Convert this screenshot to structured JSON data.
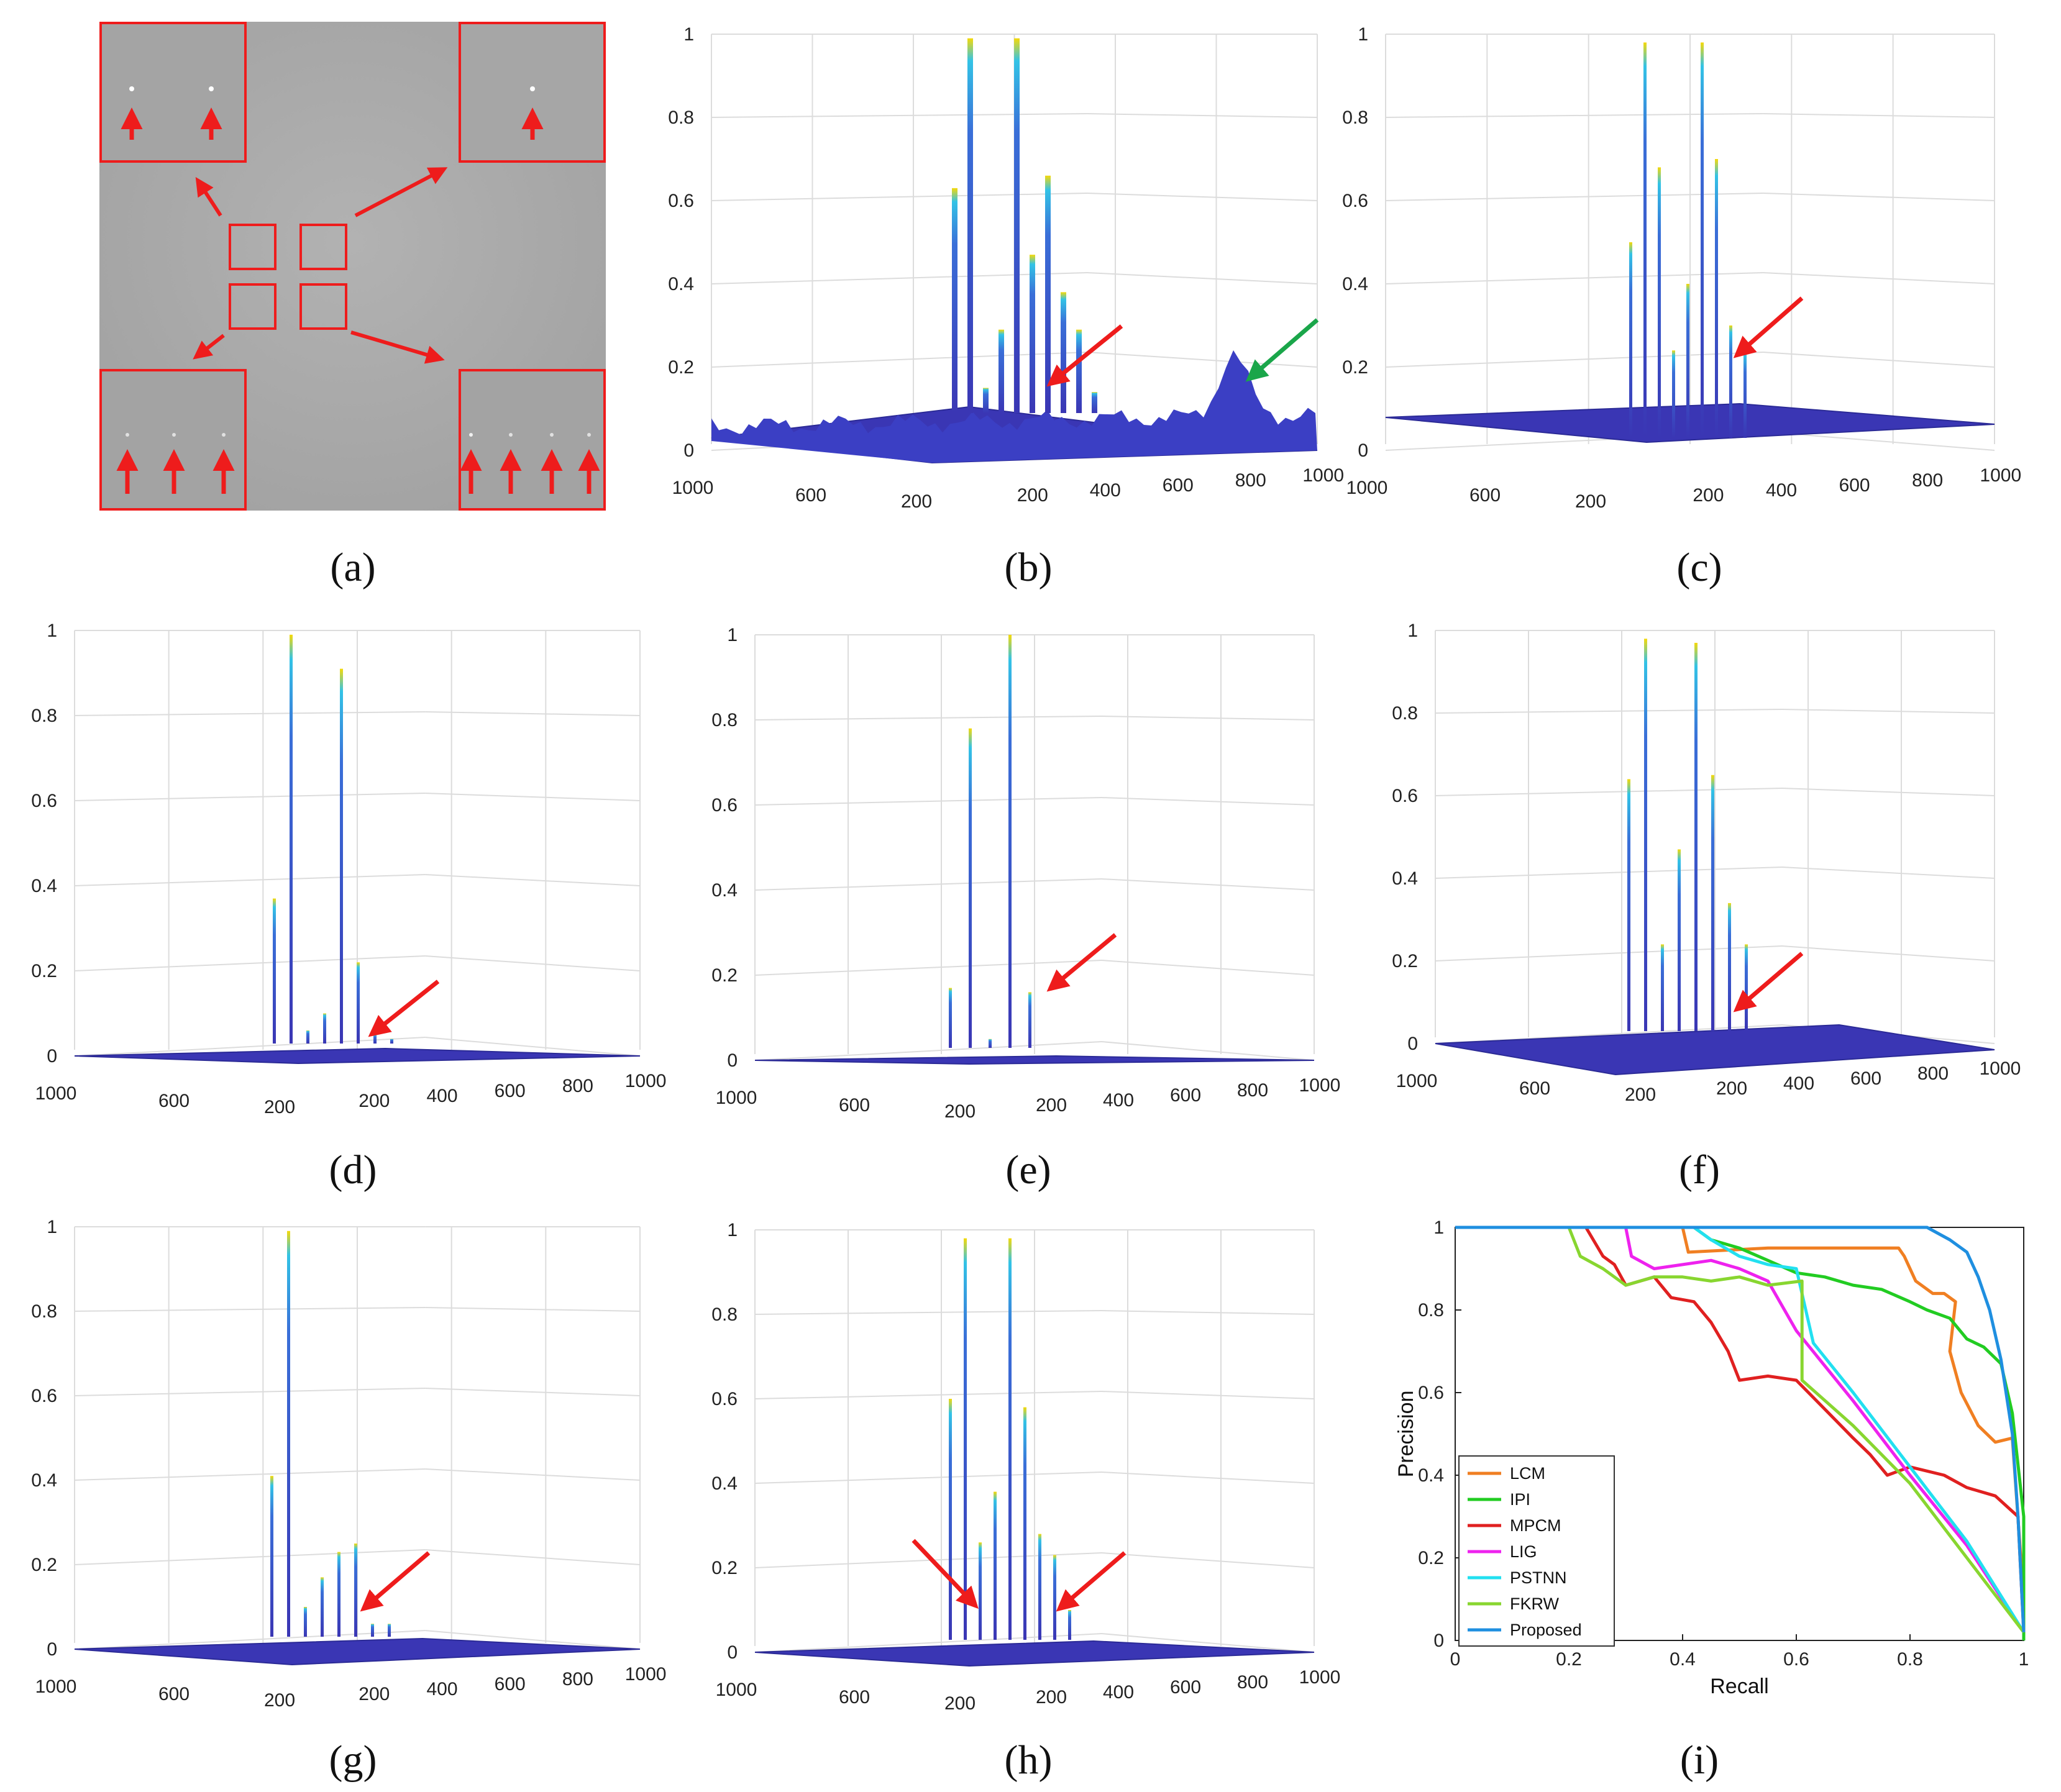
{
  "panel_labels": [
    "(a)",
    "(b)",
    "(c)",
    "(d)",
    "(e)",
    "(f)",
    "(g)",
    "(h)",
    "(i)"
  ],
  "colors": {
    "arrow_red": "#ee1c1c",
    "arrow_green": "#1aa64a",
    "surface": "#3a36b4",
    "surface_dark": "#2b2a96",
    "peak_top": "#f5d90a"
  },
  "chart_data": [
    {
      "type": "image",
      "id": "a",
      "title": "(a)",
      "description_targets": {
        "top_left": 2,
        "top_right": 1,
        "bottom_left": 3,
        "bottom_right": 4
      }
    },
    {
      "type": "surface3d",
      "id": "b",
      "title": "(b)",
      "zlim": [
        0,
        1
      ],
      "z_ticks": [
        "0",
        "0.2",
        "0.4",
        "0.6",
        "0.8",
        "1"
      ],
      "y_ticks": [
        "1000",
        "600",
        "200"
      ],
      "x_ticks": [
        "200",
        "400",
        "600",
        "800",
        "1000"
      ],
      "peaks": [
        0.63,
        0.99,
        0.15,
        0.29,
        0.99,
        0.47,
        0.66,
        0.38,
        0.29,
        0.14
      ],
      "background_level": 0.04,
      "annotations": [
        "red-arrow",
        "green-arrow"
      ]
    },
    {
      "type": "surface3d",
      "id": "c",
      "title": "(c)",
      "zlim": [
        0,
        1
      ],
      "z_ticks": [
        "0",
        "0.2",
        "0.4",
        "0.6",
        "0.8",
        "1"
      ],
      "y_ticks": [
        "1000",
        "600",
        "200"
      ],
      "x_ticks": [
        "200",
        "400",
        "600",
        "800",
        "1000"
      ],
      "peaks": [
        0.5,
        0.98,
        0.68,
        0.24,
        0.4,
        0.98,
        0.7,
        0.3,
        0.24
      ],
      "annotations": [
        "red-arrow"
      ]
    },
    {
      "type": "surface3d",
      "id": "d",
      "title": "(d)",
      "zlim": [
        0,
        1
      ],
      "z_ticks": [
        "0",
        "0.2",
        "0.4",
        "0.6",
        "0.8",
        "1"
      ],
      "y_ticks": [
        "1000",
        "600",
        "200"
      ],
      "x_ticks": [
        "200",
        "400",
        "600",
        "800",
        "1000"
      ],
      "peaks": [
        0.37,
        0.99,
        0.06,
        0.1,
        0.91,
        0.22,
        0.05,
        0.04
      ],
      "annotations": [
        "red-arrow"
      ]
    },
    {
      "type": "surface3d",
      "id": "e",
      "title": "(e)",
      "zlim": [
        0,
        1
      ],
      "z_ticks": [
        "0",
        "0.2",
        "0.4",
        "0.6",
        "0.8",
        "1"
      ],
      "y_ticks": [
        "1000",
        "600",
        "200"
      ],
      "x_ticks": [
        "200",
        "400",
        "600",
        "800",
        "1000"
      ],
      "peaks": [
        0.17,
        0.78,
        0.05,
        1.0,
        0.16
      ],
      "annotations": [
        "red-arrow"
      ]
    },
    {
      "type": "surface3d",
      "id": "f",
      "title": "(f)",
      "zlim": [
        0,
        1
      ],
      "z_ticks": [
        "0",
        "0.2",
        "0.4",
        "0.6",
        "0.8",
        "1"
      ],
      "y_ticks": [
        "1000",
        "600",
        "200"
      ],
      "x_ticks": [
        "200",
        "400",
        "600",
        "800",
        "1000"
      ],
      "peaks": [
        0.64,
        0.98,
        0.24,
        0.47,
        0.97,
        0.65,
        0.34,
        0.24
      ],
      "annotations": [
        "red-arrow"
      ]
    },
    {
      "type": "surface3d",
      "id": "g",
      "title": "(g)",
      "zlim": [
        0,
        1
      ],
      "z_ticks": [
        "0",
        "0.2",
        "0.4",
        "0.6",
        "0.8",
        "1"
      ],
      "y_ticks": [
        "1000",
        "600",
        "200"
      ],
      "x_ticks": [
        "200",
        "400",
        "600",
        "800",
        "1000"
      ],
      "peaks": [
        0.41,
        0.99,
        0.1,
        0.17,
        0.23,
        0.25,
        0.06,
        0.06
      ],
      "annotations": [
        "red-arrow"
      ]
    },
    {
      "type": "surface3d",
      "id": "h",
      "title": "(h)",
      "zlim": [
        0,
        1
      ],
      "z_ticks": [
        "0",
        "0.2",
        "0.4",
        "0.6",
        "0.8",
        "1"
      ],
      "y_ticks": [
        "1000",
        "600",
        "200"
      ],
      "x_ticks": [
        "200",
        "400",
        "600",
        "800",
        "1000"
      ],
      "peaks": [
        0.6,
        0.98,
        0.26,
        0.38,
        0.98,
        0.58,
        0.28,
        0.23,
        0.1
      ],
      "annotations": [
        "red-arrow",
        "red-arrow"
      ]
    },
    {
      "type": "line",
      "id": "i",
      "title": "(i)",
      "xlabel": "Recall",
      "ylabel": "Precision",
      "xlim": [
        0,
        1
      ],
      "ylim": [
        0,
        1
      ],
      "x_ticks": [
        "0",
        "0.2",
        "0.4",
        "0.6",
        "0.8",
        "1"
      ],
      "y_ticks": [
        "0",
        "0.2",
        "0.4",
        "0.6",
        "0.8",
        "1"
      ],
      "legend_position": "bottom-left",
      "series": [
        {
          "name": "LCM",
          "color": "#f07f22",
          "points": [
            [
              0,
              1
            ],
            [
              0.4,
              1
            ],
            [
              0.41,
              0.94
            ],
            [
              0.55,
              0.95
            ],
            [
              0.6,
              0.95
            ],
            [
              0.78,
              0.95
            ],
            [
              0.79,
              0.93
            ],
            [
              0.81,
              0.87
            ],
            [
              0.84,
              0.84
            ],
            [
              0.86,
              0.84
            ],
            [
              0.88,
              0.82
            ],
            [
              0.87,
              0.7
            ],
            [
              0.89,
              0.6
            ],
            [
              0.92,
              0.52
            ],
            [
              0.95,
              0.48
            ],
            [
              0.98,
              0.49
            ],
            [
              1,
              0.1
            ],
            [
              1,
              0
            ]
          ]
        },
        {
          "name": "IPI",
          "color": "#22cc22",
          "points": [
            [
              0,
              1
            ],
            [
              0.42,
              1
            ],
            [
              0.45,
              0.97
            ],
            [
              0.5,
              0.95
            ],
            [
              0.55,
              0.92
            ],
            [
              0.6,
              0.89
            ],
            [
              0.65,
              0.88
            ],
            [
              0.7,
              0.86
            ],
            [
              0.75,
              0.85
            ],
            [
              0.8,
              0.82
            ],
            [
              0.83,
              0.8
            ],
            [
              0.87,
              0.78
            ],
            [
              0.9,
              0.73
            ],
            [
              0.93,
              0.71
            ],
            [
              0.96,
              0.67
            ],
            [
              0.98,
              0.55
            ],
            [
              1,
              0.3
            ],
            [
              1,
              0
            ]
          ]
        },
        {
          "name": "MPCM",
          "color": "#e02020",
          "points": [
            [
              0,
              1
            ],
            [
              0.23,
              1
            ],
            [
              0.26,
              0.93
            ],
            [
              0.28,
              0.91
            ],
            [
              0.3,
              0.86
            ],
            [
              0.35,
              0.88
            ],
            [
              0.38,
              0.83
            ],
            [
              0.42,
              0.82
            ],
            [
              0.45,
              0.77
            ],
            [
              0.48,
              0.7
            ],
            [
              0.5,
              0.63
            ],
            [
              0.55,
              0.64
            ],
            [
              0.6,
              0.63
            ],
            [
              0.65,
              0.56
            ],
            [
              0.7,
              0.49
            ],
            [
              0.73,
              0.45
            ],
            [
              0.76,
              0.4
            ],
            [
              0.8,
              0.42
            ],
            [
              0.86,
              0.4
            ],
            [
              0.9,
              0.37
            ],
            [
              0.95,
              0.35
            ],
            [
              0.99,
              0.3
            ],
            [
              1,
              0.02
            ]
          ]
        },
        {
          "name": "LIG",
          "color": "#ee22ee",
          "points": [
            [
              0,
              1
            ],
            [
              0.3,
              1
            ],
            [
              0.31,
              0.93
            ],
            [
              0.35,
              0.9
            ],
            [
              0.45,
              0.92
            ],
            [
              0.5,
              0.9
            ],
            [
              0.55,
              0.87
            ],
            [
              0.6,
              0.75
            ],
            [
              0.7,
              0.58
            ],
            [
              0.8,
              0.4
            ],
            [
              0.9,
              0.23
            ],
            [
              1,
              0.02
            ]
          ]
        },
        {
          "name": "PSTNN",
          "color": "#22e0f0",
          "points": [
            [
              0,
              1
            ],
            [
              0.42,
              1
            ],
            [
              0.45,
              0.97
            ],
            [
              0.5,
              0.93
            ],
            [
              0.55,
              0.91
            ],
            [
              0.6,
              0.9
            ],
            [
              0.63,
              0.72
            ],
            [
              0.7,
              0.6
            ],
            [
              0.8,
              0.42
            ],
            [
              0.9,
              0.24
            ],
            [
              1,
              0.02
            ]
          ]
        },
        {
          "name": "FKRW",
          "color": "#88d630",
          "points": [
            [
              0,
              1
            ],
            [
              0.2,
              1
            ],
            [
              0.22,
              0.93
            ],
            [
              0.26,
              0.9
            ],
            [
              0.3,
              0.86
            ],
            [
              0.35,
              0.88
            ],
            [
              0.4,
              0.88
            ],
            [
              0.45,
              0.87
            ],
            [
              0.5,
              0.88
            ],
            [
              0.55,
              0.86
            ],
            [
              0.61,
              0.87
            ],
            [
              0.61,
              0.63
            ],
            [
              0.7,
              0.52
            ],
            [
              0.8,
              0.38
            ],
            [
              0.9,
              0.2
            ],
            [
              1,
              0.02
            ]
          ]
        },
        {
          "name": "Proposed",
          "color": "#1f8fe0",
          "points": [
            [
              0,
              1
            ],
            [
              0.83,
              1
            ],
            [
              0.87,
              0.97
            ],
            [
              0.9,
              0.94
            ],
            [
              0.92,
              0.88
            ],
            [
              0.94,
              0.8
            ],
            [
              0.96,
              0.68
            ],
            [
              0.98,
              0.5
            ],
            [
              0.99,
              0.3
            ],
            [
              1,
              0.02
            ]
          ]
        }
      ]
    }
  ]
}
